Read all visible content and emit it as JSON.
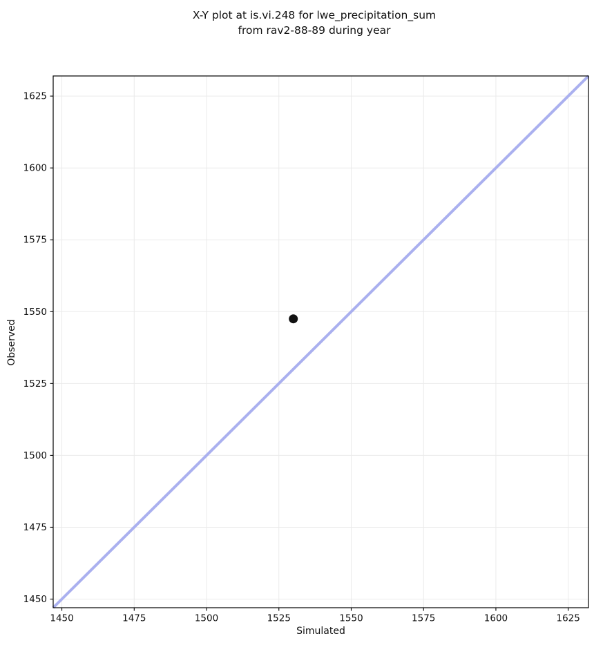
{
  "title": {
    "line1": "X-Y plot at is.vi.248 for lwe_precipitation_sum",
    "line2": "from rav2-88-89 during year"
  },
  "chart_data": {
    "type": "scatter",
    "title": "X-Y plot at is.vi.248 for lwe_precipitation_sum\nfrom rav2-88-89 during year",
    "xlabel": "Simulated",
    "ylabel": "Observed",
    "xlim": [
      1447,
      1632
    ],
    "ylim": [
      1447,
      1632
    ],
    "xticks": [
      1450,
      1475,
      1500,
      1525,
      1550,
      1575,
      1600,
      1625
    ],
    "yticks": [
      1450,
      1475,
      1500,
      1525,
      1550,
      1575,
      1600,
      1625
    ],
    "grid": true,
    "legend": false,
    "points": [
      {
        "x": 1530,
        "y": 1547.5
      }
    ],
    "identity_line": {
      "from": [
        1447,
        1447
      ],
      "to": [
        1632,
        1632
      ]
    },
    "marker": {
      "shape": "circle",
      "radius_px": 6.5
    },
    "colors": {
      "point": "#111111",
      "identity_line": "#aab0ef",
      "grid": "#eaeaea",
      "spine": "#000000",
      "tick_label": "#111111",
      "background": "#ffffff"
    }
  }
}
